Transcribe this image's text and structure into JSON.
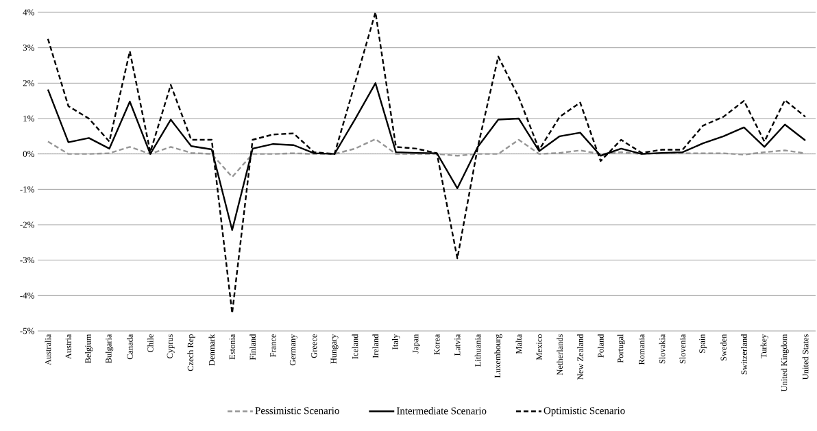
{
  "chart_data": {
    "type": "line",
    "categories": [
      "Australia",
      "Austria",
      "Belgium",
      "Bulgaria",
      "Canada",
      "Chile",
      "Cyprus",
      "Czech Rep",
      "Denmark",
      "Estonia",
      "Finland",
      "France",
      "Germany",
      "Greece",
      "Hungary",
      "Iceland",
      "Ireland",
      "Italy",
      "Japan",
      "Korea",
      "Latvia",
      "Lithuania",
      "Luxembourg",
      "Malta",
      "Mexico",
      "Netherlands",
      "New Zealand",
      "Poland",
      "Portugal",
      "Romania",
      "Slovakia",
      "Slovenia",
      "Spain",
      "Sweden",
      "Switzerland",
      "Turkey",
      "United Kingdom",
      "United States"
    ],
    "series": [
      {
        "name": "Pessimistic Scenario",
        "color": "#969696",
        "line_style": "dashed",
        "values": [
          0.35,
          0,
          0,
          0.02,
          0.2,
          0,
          0.2,
          0.03,
          0,
          -0.65,
          0,
          0,
          0.02,
          0,
          0,
          0.15,
          0.42,
          0,
          0,
          0,
          -0.05,
          0,
          0,
          0.4,
          0,
          0.03,
          0.1,
          0,
          0.05,
          0,
          0.02,
          0.02,
          0.02,
          0.02,
          -0.02,
          0.05,
          0.1,
          0.02
        ]
      },
      {
        "name": "Intermediate Scenario",
        "color": "#000000",
        "line_style": "solid",
        "values": [
          1.82,
          0.33,
          0.45,
          0.15,
          1.48,
          0,
          0.97,
          0.22,
          0.13,
          -2.15,
          0.15,
          0.28,
          0.25,
          0.02,
          0,
          0.98,
          2.0,
          0.05,
          0.03,
          0.02,
          -0.97,
          0.2,
          0.97,
          1.0,
          0.08,
          0.5,
          0.6,
          -0.05,
          0.15,
          0,
          0.03,
          0.05,
          0.3,
          0.5,
          0.75,
          0.2,
          0.83,
          0.38
        ]
      },
      {
        "name": "Optimistic Scenario",
        "color": "#000000",
        "line_style": "dashed",
        "values": [
          3.25,
          1.35,
          1.0,
          0.35,
          2.9,
          0.05,
          1.95,
          0.4,
          0.4,
          -4.5,
          0.4,
          0.55,
          0.58,
          0.05,
          0,
          2.0,
          4.0,
          0.2,
          0.15,
          0.02,
          -2.95,
          0.2,
          2.75,
          1.6,
          0.12,
          1.05,
          1.45,
          -0.2,
          0.4,
          0.03,
          0.12,
          0.12,
          0.8,
          1.05,
          1.5,
          0.35,
          1.52,
          1.05
        ]
      }
    ],
    "ylim": [
      -5,
      4
    ],
    "yticks": [
      {
        "value": -5,
        "label": "-5%"
      },
      {
        "value": -4,
        "label": "-4%"
      },
      {
        "value": -3,
        "label": "-3%"
      },
      {
        "value": -2,
        "label": "-2%"
      },
      {
        "value": -1,
        "label": "-1%"
      },
      {
        "value": 0,
        "label": "0%"
      },
      {
        "value": 1,
        "label": "1%"
      },
      {
        "value": 2,
        "label": "2%"
      },
      {
        "value": 3,
        "label": "3%"
      },
      {
        "value": 4,
        "label": "4%"
      }
    ],
    "grid": "y",
    "ref_lines": [
      {
        "axis": "y",
        "value": 0,
        "color": "#808080",
        "line_style": "dashed"
      }
    ],
    "legend": "bottom"
  }
}
